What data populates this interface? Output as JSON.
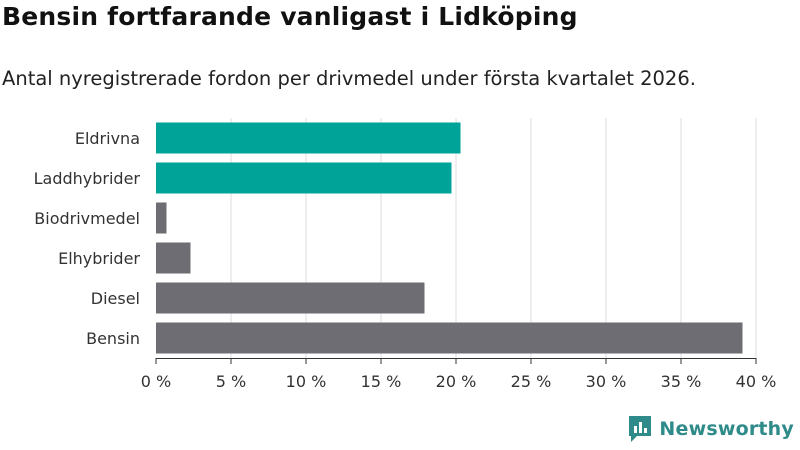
{
  "title": "Bensin fortfarande vanligast i Lidköping",
  "subtitle": "Antal nyregistrerade fordon per drivmedel under första kvartalet 2026.",
  "brand": {
    "name": "Newsworthy",
    "icon": "newsworthy-logo-icon",
    "color": "#2f8a8a"
  },
  "chart_data": {
    "type": "bar",
    "orientation": "horizontal",
    "title": "Bensin fortfarande vanligast i Lidköping",
    "subtitle": "Antal nyregistrerade fordon per drivmedel under första kvartalet 2026.",
    "xlabel": "",
    "ylabel": "",
    "categories": [
      "Eldrivna",
      "Laddhybrider",
      "Biodrivmedel",
      "Elhybrider",
      "Diesel",
      "Bensin"
    ],
    "values": [
      20.3,
      19.7,
      0.7,
      2.3,
      17.9,
      39.1
    ],
    "colors": [
      "#00a398",
      "#00a398",
      "#6e6d73",
      "#6e6d73",
      "#6e6d73",
      "#6e6d73"
    ],
    "xlim": [
      0,
      40
    ],
    "ticks": [
      0,
      5,
      10,
      15,
      20,
      25,
      30,
      35,
      40
    ],
    "tick_labels": [
      "0 %",
      "5 %",
      "10 %",
      "15 %",
      "20 %",
      "25 %",
      "30 %",
      "35 %",
      "40 %"
    ],
    "grid": true
  }
}
